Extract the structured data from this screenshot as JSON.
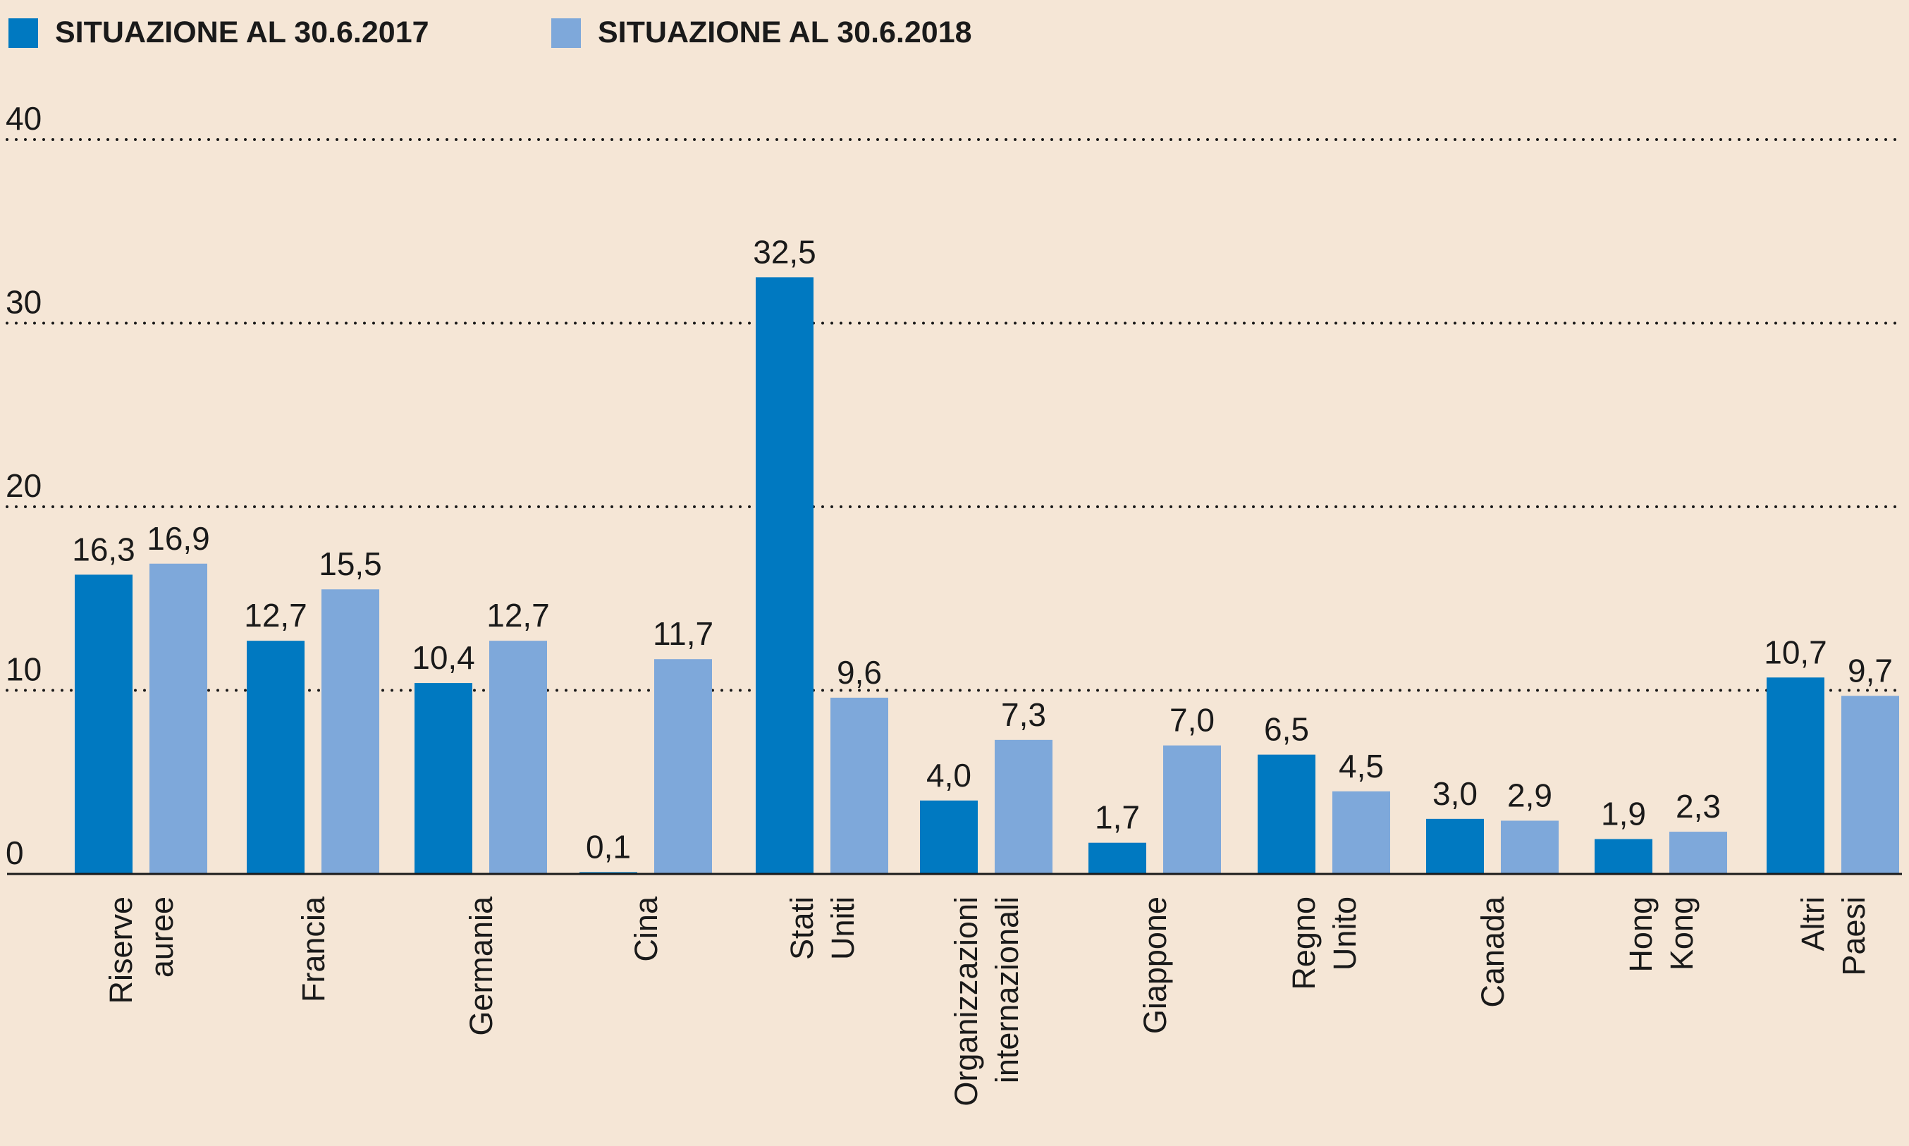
{
  "chart_data": {
    "type": "bar",
    "categories": [
      [
        "Riserve",
        "auree"
      ],
      [
        "Francia"
      ],
      [
        "Germania"
      ],
      [
        "Cina"
      ],
      [
        "Stati",
        "Uniti"
      ],
      [
        "Organizzazioni",
        "internazionali"
      ],
      [
        "Giappone"
      ],
      [
        "Regno",
        "Unito"
      ],
      [
        "Canada"
      ],
      [
        "Hong",
        "Kong"
      ],
      [
        "Altri",
        "Paesi"
      ]
    ],
    "series": [
      {
        "name": "SITUAZIONE AL 30.6.2017",
        "color": "#0079c1",
        "values": [
          16.3,
          12.7,
          10.4,
          0.1,
          32.5,
          4.0,
          1.7,
          6.5,
          3.0,
          1.9,
          10.7
        ],
        "labels": [
          "16,3",
          "12,7",
          "10,4",
          "0,1",
          "32,5",
          "4,0",
          "1,7",
          "6,5",
          "3,0",
          "1,9",
          "10,7"
        ]
      },
      {
        "name": "SITUAZIONE AL 30.6.2018",
        "color": "#7ea8da",
        "values": [
          16.9,
          15.5,
          12.7,
          11.7,
          9.6,
          7.3,
          7.0,
          4.5,
          2.9,
          2.3,
          9.7
        ],
        "labels": [
          "16,9",
          "15,5",
          "12,7",
          "11,7",
          "9,6",
          "7,3",
          "7,0",
          "4,5",
          "2,9",
          "2,3",
          "9,7"
        ]
      }
    ],
    "yticks": [
      0,
      10,
      20,
      30,
      40
    ],
    "ylim": [
      0,
      40
    ],
    "grid": "dotted",
    "legend": "top-left",
    "value_labels": true
  }
}
